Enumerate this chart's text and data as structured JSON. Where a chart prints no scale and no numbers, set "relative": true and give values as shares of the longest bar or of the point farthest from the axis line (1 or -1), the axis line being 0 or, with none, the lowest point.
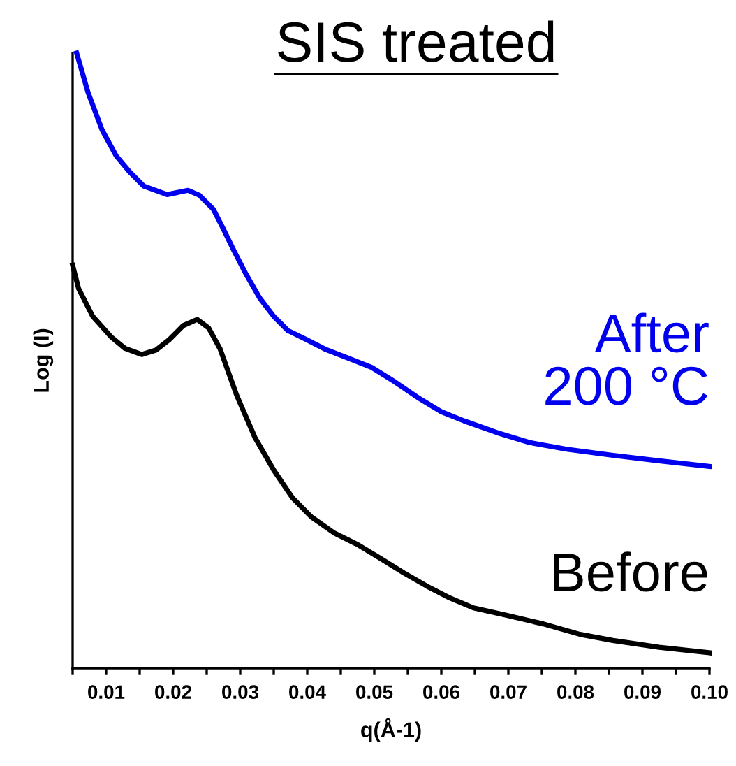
{
  "chart_data": {
    "type": "line",
    "title": "SIS treated",
    "xlabel": "q(Å-1)",
    "ylabel": "Log (I)",
    "relative": true,
    "legend": false,
    "tick_labels": "x",
    "grid": false,
    "line_style": "solid",
    "marker": "none",
    "xlim": [
      0.005,
      0.1
    ],
    "xticks": [
      {
        "value": 0.005,
        "label": null
      },
      {
        "value": 0.01,
        "label": "0.01"
      },
      {
        "value": 0.015,
        "label": null
      },
      {
        "value": 0.02,
        "label": "0.02"
      },
      {
        "value": 0.025,
        "label": null
      },
      {
        "value": 0.03,
        "label": "0.03"
      },
      {
        "value": 0.035,
        "label": null
      },
      {
        "value": 0.04,
        "label": "0.04"
      },
      {
        "value": 0.045,
        "label": null
      },
      {
        "value": 0.05,
        "label": "0.05"
      },
      {
        "value": 0.055,
        "label": null
      },
      {
        "value": 0.06,
        "label": "0.06"
      },
      {
        "value": 0.065,
        "label": null
      },
      {
        "value": 0.07,
        "label": "0.07"
      },
      {
        "value": 0.075,
        "label": null
      },
      {
        "value": 0.08,
        "label": "0.08"
      },
      {
        "value": 0.085,
        "label": null
      },
      {
        "value": 0.09,
        "label": "0.09"
      },
      {
        "value": 0.095,
        "label": null
      },
      {
        "value": 0.1,
        "label": "0.10"
      }
    ],
    "series": [
      {
        "name": "After\n200 °C",
        "color": "#0000ee",
        "x": [
          0.0056,
          0.0073,
          0.0094,
          0.0115,
          0.0135,
          0.0156,
          0.0191,
          0.0222,
          0.0239,
          0.026,
          0.0274,
          0.0291,
          0.0309,
          0.0329,
          0.035,
          0.0371,
          0.0399,
          0.0426,
          0.0461,
          0.0496,
          0.053,
          0.0565,
          0.06,
          0.0634,
          0.0683,
          0.0731,
          0.0787,
          0.0856,
          0.0925,
          0.1
        ],
        "values": [
          1.0,
          0.936,
          0.875,
          0.833,
          0.807,
          0.784,
          0.77,
          0.777,
          0.769,
          0.746,
          0.716,
          0.678,
          0.64,
          0.602,
          0.572,
          0.549,
          0.534,
          0.519,
          0.504,
          0.489,
          0.466,
          0.44,
          0.417,
          0.402,
          0.383,
          0.367,
          0.356,
          0.346,
          0.337,
          0.328
        ]
      },
      {
        "name": "Before",
        "color": "#000000",
        "x": [
          0.005,
          0.0059,
          0.008,
          0.0108,
          0.0128,
          0.0153,
          0.0174,
          0.0194,
          0.0215,
          0.0236,
          0.0253,
          0.027,
          0.0295,
          0.0322,
          0.035,
          0.0378,
          0.0406,
          0.044,
          0.0475,
          0.051,
          0.0544,
          0.0579,
          0.0613,
          0.0648,
          0.0697,
          0.0752,
          0.0807,
          0.0856,
          0.0925,
          0.1
        ],
        "values": [
          0.655,
          0.617,
          0.572,
          0.538,
          0.52,
          0.51,
          0.517,
          0.534,
          0.557,
          0.567,
          0.553,
          0.519,
          0.443,
          0.375,
          0.322,
          0.277,
          0.246,
          0.22,
          0.201,
          0.178,
          0.155,
          0.133,
          0.114,
          0.098,
          0.086,
          0.072,
          0.055,
          0.045,
          0.034,
          0.025
        ]
      }
    ]
  }
}
